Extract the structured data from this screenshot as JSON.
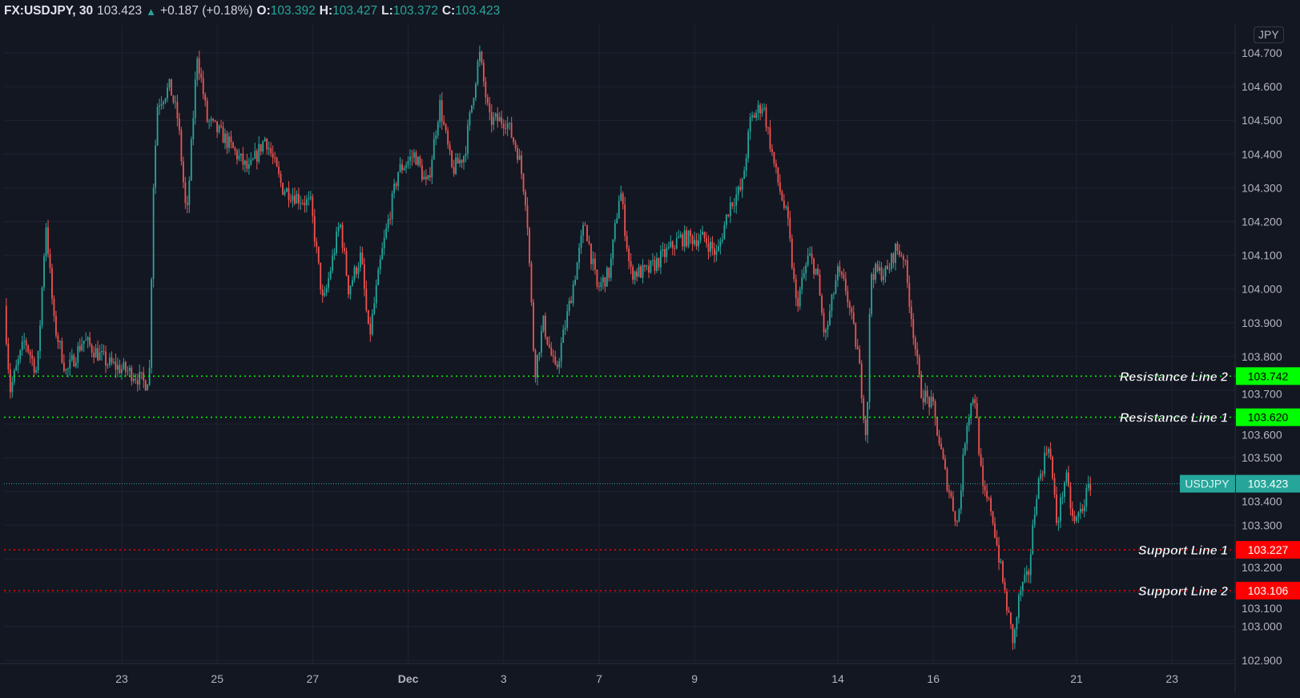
{
  "header": {
    "symbol": "FX:USDJPY, 30",
    "last": "103.423",
    "direction_icon": "triangle-up",
    "change": "+0.187 (+0.18%)",
    "open_label": "O:",
    "open": "103.392",
    "high_label": "H:",
    "high": "103.427",
    "low_label": "L:",
    "low": "103.372",
    "close_label": "C:",
    "close": "103.423"
  },
  "currency_button": "JPY",
  "colors": {
    "background": "#131722",
    "up": "#26a69a",
    "down": "#ef5350",
    "resistance": "#00ff00",
    "support": "#ff0000",
    "grid": "#1f2330"
  },
  "chart_data": {
    "type": "candlestick",
    "interval": "30",
    "x_unit": "trading-day index (0 = Nov 23)",
    "xlim": [
      -2.5,
      23.4
    ],
    "ylim": [
      102.9,
      104.75
    ],
    "y_ticks": [
      "102.900",
      "103.000",
      "103.100",
      "103.200",
      "103.300",
      "103.400",
      "103.500",
      "103.600",
      "103.700",
      "103.800",
      "103.900",
      "104.000",
      "104.100",
      "104.200",
      "104.300",
      "104.400",
      "104.500",
      "104.600",
      "104.700"
    ],
    "x_ticks": [
      {
        "label": "23",
        "index": 0
      },
      {
        "label": "25",
        "index": 2
      },
      {
        "label": "27",
        "index": 4
      },
      {
        "label": "Dec",
        "index": 6,
        "bold": true
      },
      {
        "label": "3",
        "index": 8
      },
      {
        "label": "7",
        "index": 10
      },
      {
        "label": "9",
        "index": 12
      },
      {
        "label": "14",
        "index": 15
      },
      {
        "label": "16",
        "index": 17
      },
      {
        "label": "21",
        "index": 20
      },
      {
        "label": "23",
        "index": 22
      }
    ],
    "price_path": [
      [
        -2.46,
        103.95
      ],
      [
        -2.34,
        103.7
      ],
      [
        -2.03,
        103.85
      ],
      [
        -1.77,
        103.75
      ],
      [
        -1.59,
        104.2
      ],
      [
        -1.42,
        103.9
      ],
      [
        -1.16,
        103.75
      ],
      [
        -0.81,
        103.85
      ],
      [
        -0.29,
        103.78
      ],
      [
        0.23,
        103.75
      ],
      [
        0.49,
        103.72
      ],
      [
        0.58,
        103.75
      ],
      [
        0.66,
        104.3
      ],
      [
        0.75,
        104.55
      ],
      [
        1.01,
        104.6
      ],
      [
        1.18,
        104.5
      ],
      [
        1.36,
        104.2
      ],
      [
        1.58,
        104.7
      ],
      [
        1.79,
        104.5
      ],
      [
        2.14,
        104.45
      ],
      [
        2.66,
        104.35
      ],
      [
        3.01,
        104.45
      ],
      [
        3.36,
        104.3
      ],
      [
        3.96,
        104.25
      ],
      [
        4.22,
        103.95
      ],
      [
        4.57,
        104.2
      ],
      [
        4.75,
        104.0
      ],
      [
        5.01,
        104.1
      ],
      [
        5.18,
        103.85
      ],
      [
        5.44,
        104.1
      ],
      [
        5.79,
        104.35
      ],
      [
        6.14,
        104.4
      ],
      [
        6.4,
        104.3
      ],
      [
        6.66,
        104.55
      ],
      [
        6.92,
        104.35
      ],
      [
        7.18,
        104.4
      ],
      [
        7.49,
        104.7
      ],
      [
        7.7,
        104.5
      ],
      [
        8.05,
        104.5
      ],
      [
        8.31,
        104.4
      ],
      [
        8.48,
        104.25
      ],
      [
        8.65,
        103.75
      ],
      [
        8.83,
        103.9
      ],
      [
        9.09,
        103.75
      ],
      [
        9.44,
        104.0
      ],
      [
        9.7,
        104.2
      ],
      [
        9.96,
        104.0
      ],
      [
        10.22,
        104.05
      ],
      [
        10.44,
        104.3
      ],
      [
        10.65,
        104.05
      ],
      [
        11.0,
        104.05
      ],
      [
        11.35,
        104.1
      ],
      [
        11.69,
        104.15
      ],
      [
        12.21,
        104.15
      ],
      [
        12.47,
        104.1
      ],
      [
        12.73,
        104.25
      ],
      [
        12.99,
        104.3
      ],
      [
        13.17,
        104.5
      ],
      [
        13.43,
        104.55
      ],
      [
        13.69,
        104.35
      ],
      [
        13.95,
        104.2
      ],
      [
        14.13,
        103.95
      ],
      [
        14.39,
        104.1
      ],
      [
        14.56,
        104.05
      ],
      [
        14.73,
        103.85
      ],
      [
        14.99,
        104.05
      ],
      [
        15.17,
        104.0
      ],
      [
        15.43,
        103.8
      ],
      [
        15.6,
        103.55
      ],
      [
        15.69,
        104.05
      ],
      [
        16.04,
        104.05
      ],
      [
        16.21,
        104.12
      ],
      [
        16.38,
        104.1
      ],
      [
        16.56,
        103.9
      ],
      [
        16.73,
        103.7
      ],
      [
        16.99,
        103.65
      ],
      [
        17.25,
        103.45
      ],
      [
        17.51,
        103.3
      ],
      [
        17.69,
        103.6
      ],
      [
        17.86,
        103.7
      ],
      [
        18.03,
        103.4
      ],
      [
        18.21,
        103.35
      ],
      [
        18.38,
        103.2
      ],
      [
        18.55,
        103.05
      ],
      [
        18.68,
        102.95
      ],
      [
        18.81,
        103.1
      ],
      [
        18.99,
        103.15
      ],
      [
        19.16,
        103.4
      ],
      [
        19.42,
        103.55
      ],
      [
        19.59,
        103.3
      ],
      [
        19.77,
        103.45
      ],
      [
        19.94,
        103.3
      ],
      [
        20.11,
        103.35
      ],
      [
        20.29,
        103.423
      ]
    ],
    "horizontal_lines": [
      {
        "label": "Resistance Line 2",
        "price": "103.742",
        "kind": "resistance"
      },
      {
        "label": "Resistance Line 1",
        "price": "103.620",
        "kind": "resistance"
      },
      {
        "label": "Support Line 1",
        "price": "103.227",
        "kind": "support"
      },
      {
        "label": "Support Line 2",
        "price": "103.106",
        "kind": "support"
      }
    ],
    "last_price": {
      "symbol": "USDJPY",
      "price": "103.423"
    }
  }
}
